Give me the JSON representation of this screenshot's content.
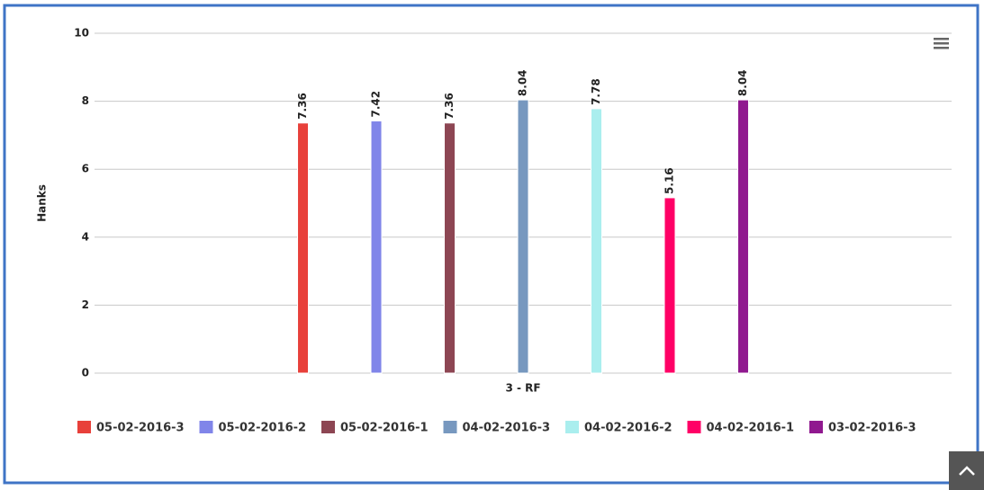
{
  "chart_data": {
    "type": "bar",
    "y_label": "Hanks",
    "categories": [
      "3 - RF"
    ],
    "series": [
      {
        "name": "05-02-2016-3",
        "color": "#e8403a",
        "values": [
          7.36
        ]
      },
      {
        "name": "05-02-2016-2",
        "color": "#8085e9",
        "values": [
          7.42
        ]
      },
      {
        "name": "05-02-2016-1",
        "color": "#8d4653",
        "values": [
          7.36
        ]
      },
      {
        "name": "04-02-2016-3",
        "color": "#7798bf",
        "values": [
          8.04
        ]
      },
      {
        "name": "04-02-2016-2",
        "color": "#aaeeee",
        "values": [
          7.78
        ]
      },
      {
        "name": "04-02-2016-1",
        "color": "#ff0066",
        "values": [
          5.16
        ]
      },
      {
        "name": "03-02-2016-3",
        "color": "#90198f",
        "values": [
          8.04
        ]
      }
    ],
    "ylim": [
      0,
      10
    ],
    "yticks": [
      0,
      2,
      4,
      6,
      8,
      10
    ],
    "grid": true,
    "data_labels": true,
    "legend": "bottom"
  }
}
